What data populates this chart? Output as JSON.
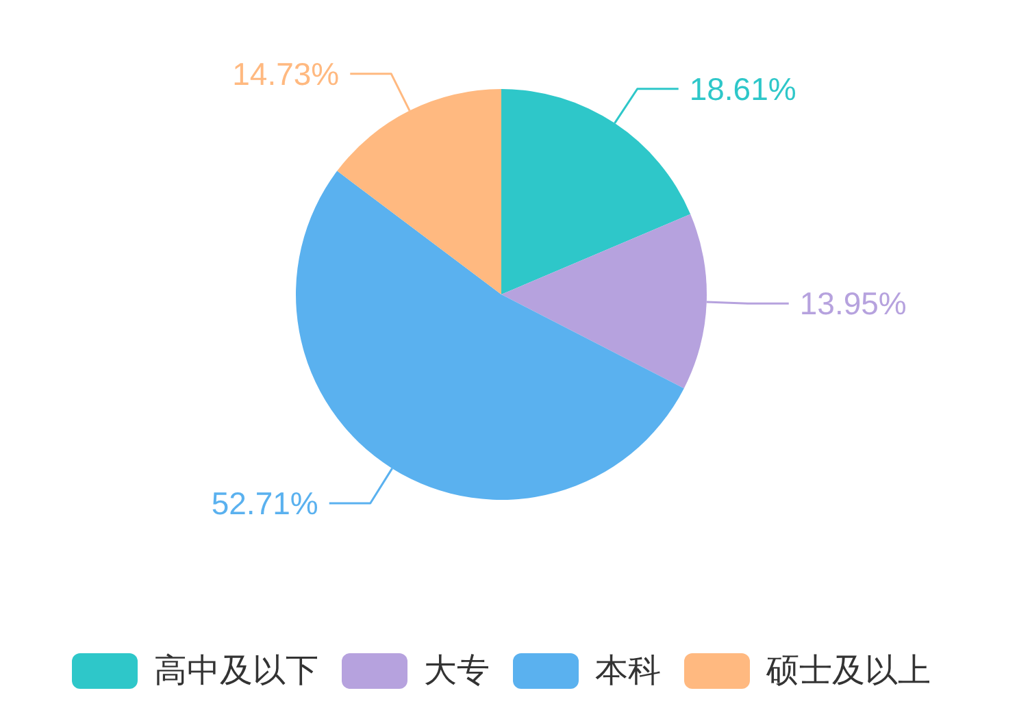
{
  "chart_data": {
    "type": "pie",
    "categories": [
      "高中及以下",
      "大专",
      "本科",
      "硕士及以上"
    ],
    "values": [
      18.61,
      13.95,
      52.71,
      14.73
    ],
    "colors": [
      "#2ec7c9",
      "#b6a2de",
      "#5ab1ef",
      "#ffb980"
    ],
    "value_labels": [
      "18.61%",
      "13.95%",
      "52.71%",
      "14.73%"
    ],
    "legend": "bottom"
  }
}
